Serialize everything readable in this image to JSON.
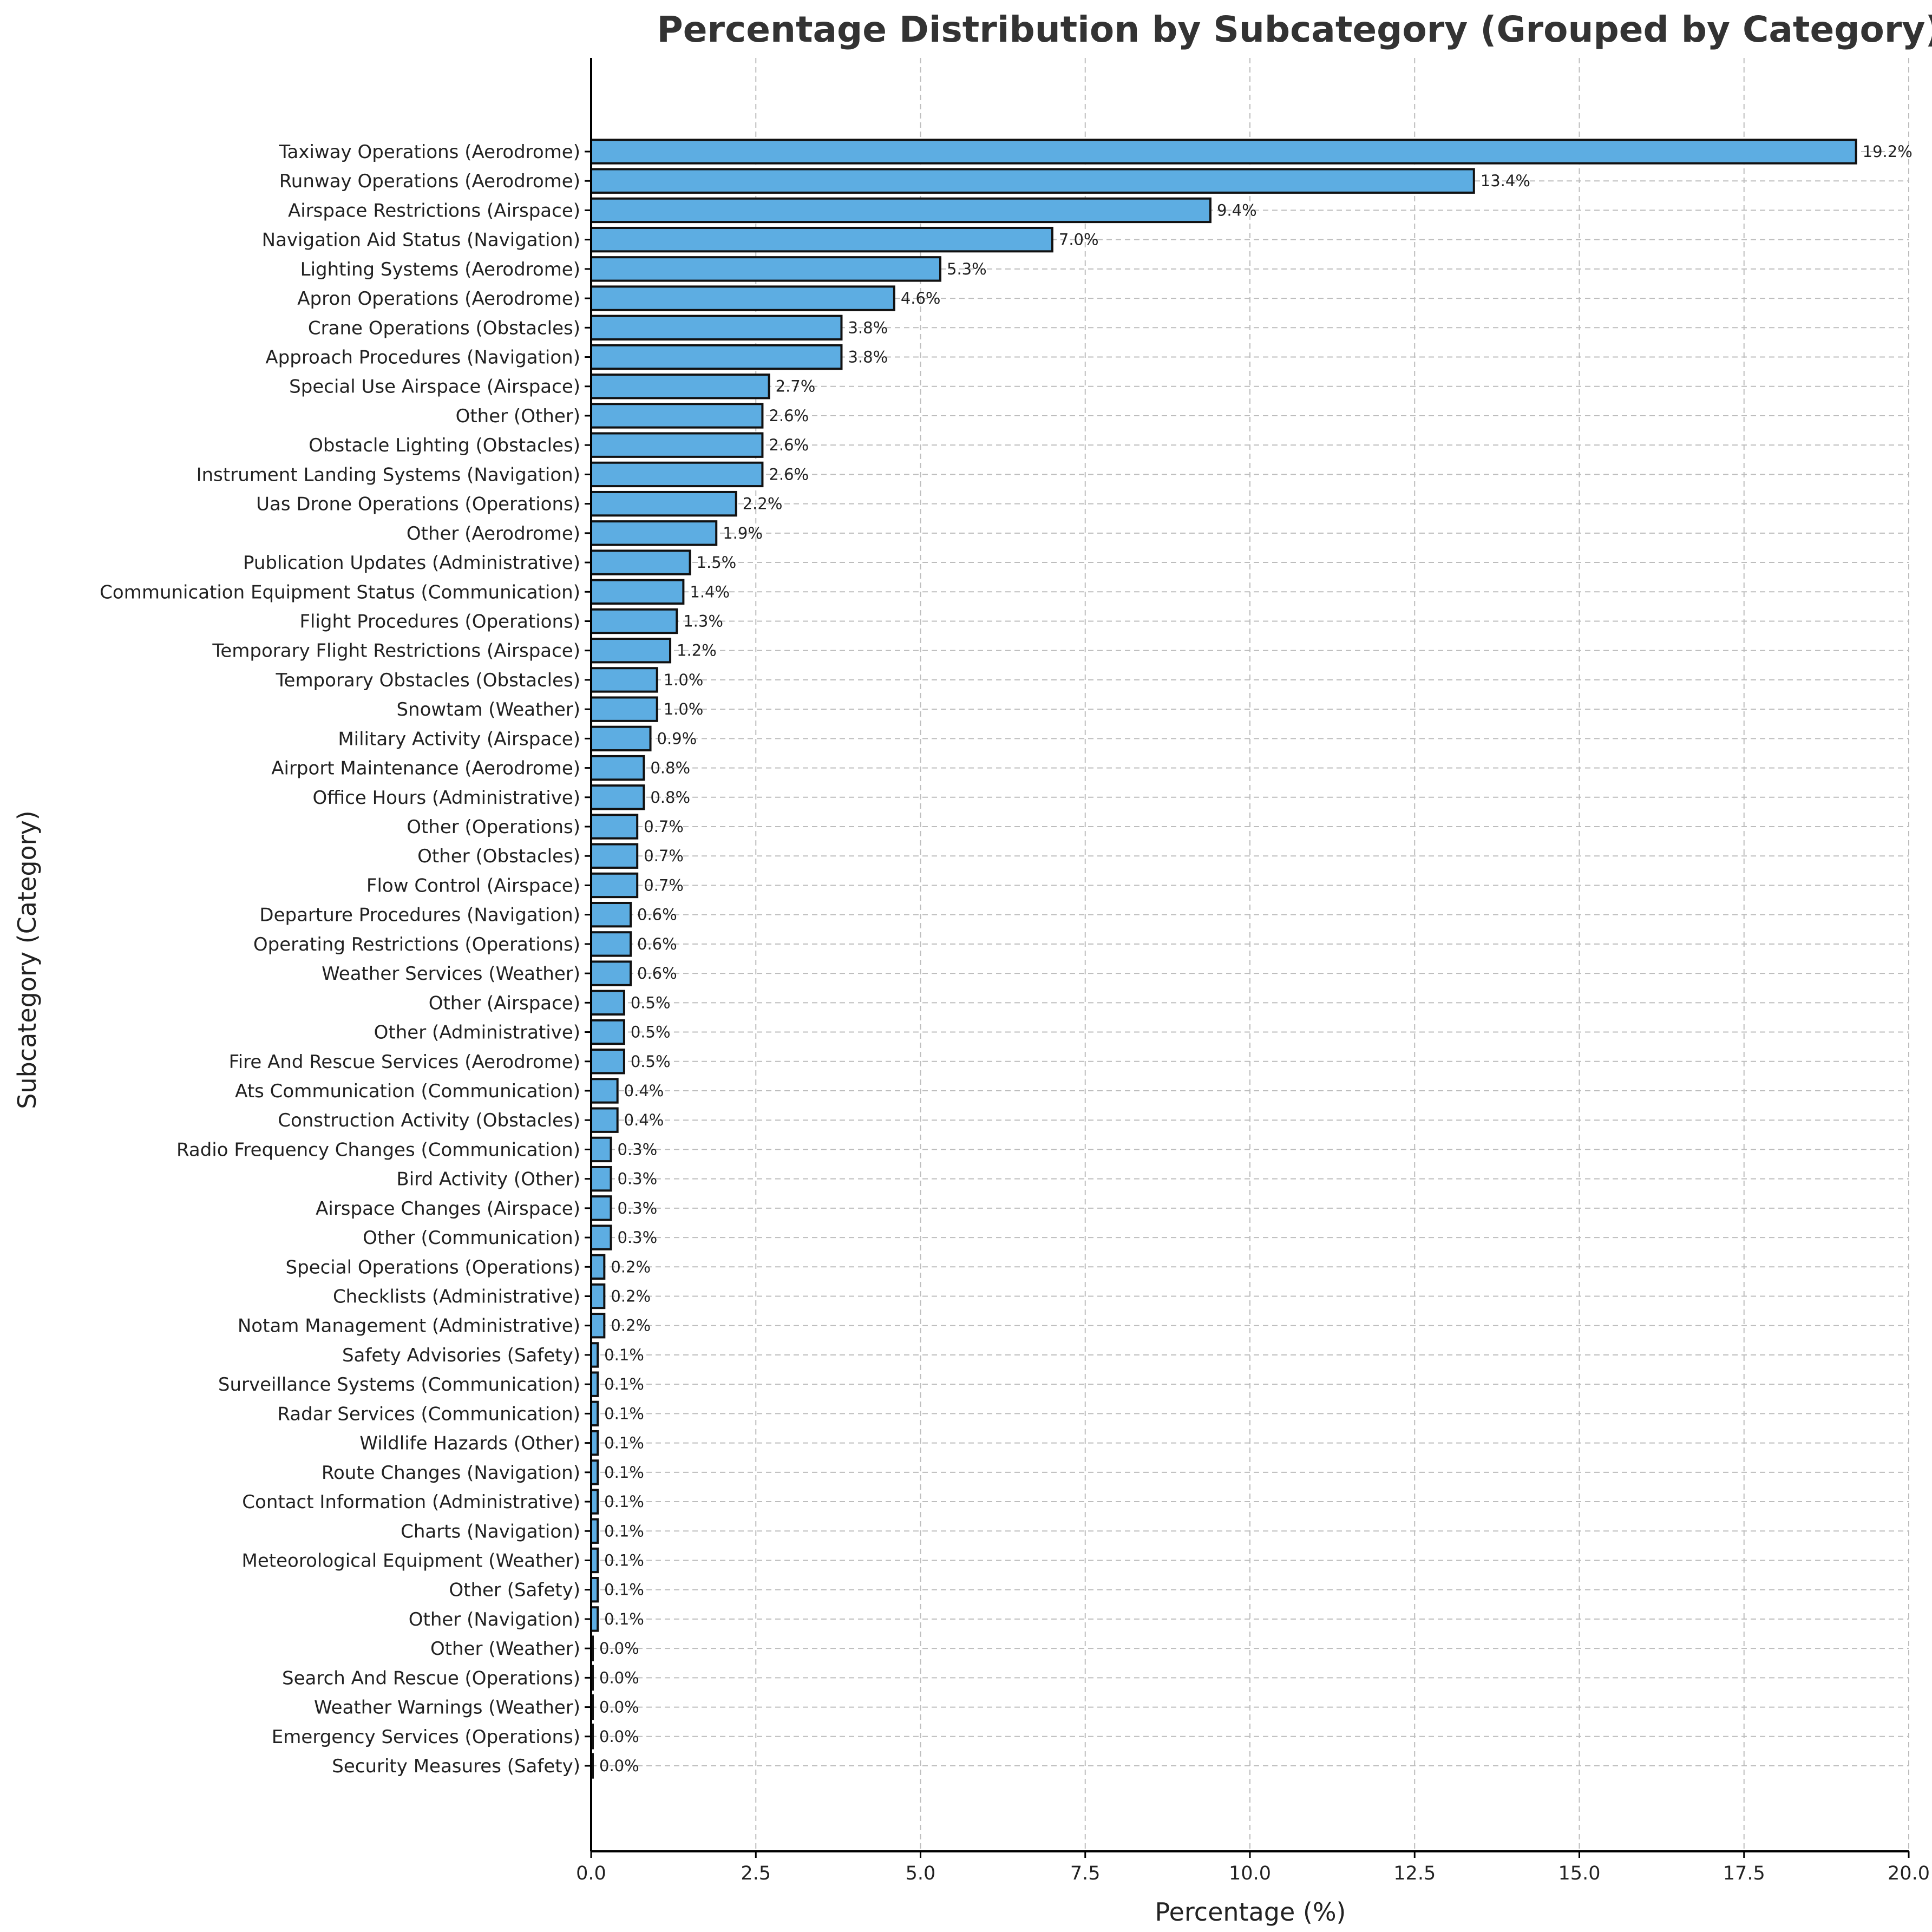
{
  "colors": {
    "bar_fill": "#5dade2",
    "bar_edge": "#111111",
    "grid": "#bdbdbd"
  },
  "chart_data": {
    "type": "bar",
    "orientation": "horizontal",
    "title": "Percentage Distribution by Subcategory (Grouped by Category)",
    "xlabel": "Percentage (%)",
    "ylabel": "Subcategory (Category)",
    "xlim": [
      0,
      20
    ],
    "xticks": [
      "0.0",
      "2.5",
      "5.0",
      "7.5",
      "10.0",
      "12.5",
      "15.0",
      "17.5",
      "20.0"
    ],
    "grid": true,
    "categories": [
      "Taxiway Operations (Aerodrome)",
      "Runway Operations (Aerodrome)",
      "Airspace Restrictions (Airspace)",
      "Navigation Aid Status (Navigation)",
      "Lighting Systems (Aerodrome)",
      "Apron Operations (Aerodrome)",
      "Crane Operations (Obstacles)",
      "Approach Procedures (Navigation)",
      "Special Use Airspace (Airspace)",
      "Other (Other)",
      "Obstacle Lighting (Obstacles)",
      "Instrument Landing Systems (Navigation)",
      "Uas Drone Operations (Operations)",
      "Other (Aerodrome)",
      "Publication Updates (Administrative)",
      "Communication Equipment Status (Communication)",
      "Flight Procedures (Operations)",
      "Temporary Flight Restrictions (Airspace)",
      "Temporary Obstacles (Obstacles)",
      "Snowtam (Weather)",
      "Military Activity (Airspace)",
      "Airport Maintenance (Aerodrome)",
      "Office Hours (Administrative)",
      "Other (Operations)",
      "Other (Obstacles)",
      "Flow Control (Airspace)",
      "Departure Procedures (Navigation)",
      "Operating Restrictions (Operations)",
      "Weather Services (Weather)",
      "Other (Airspace)",
      "Other (Administrative)",
      "Fire And Rescue Services (Aerodrome)",
      "Ats Communication (Communication)",
      "Construction Activity (Obstacles)",
      "Radio Frequency Changes (Communication)",
      "Bird Activity (Other)",
      "Airspace Changes (Airspace)",
      "Other (Communication)",
      "Special Operations (Operations)",
      "Checklists (Administrative)",
      "Notam Management (Administrative)",
      "Safety Advisories (Safety)",
      "Surveillance Systems (Communication)",
      "Radar Services (Communication)",
      "Wildlife Hazards (Other)",
      "Route Changes (Navigation)",
      "Contact Information (Administrative)",
      "Charts (Navigation)",
      "Meteorological Equipment (Weather)",
      "Other (Safety)",
      "Other (Navigation)",
      "Other (Weather)",
      "Search And Rescue (Operations)",
      "Weather Warnings (Weather)",
      "Emergency Services (Operations)",
      "Security Measures (Safety)"
    ],
    "values": [
      19.2,
      13.4,
      9.4,
      7.0,
      5.3,
      4.6,
      3.8,
      3.8,
      2.7,
      2.6,
      2.6,
      2.6,
      2.2,
      1.9,
      1.5,
      1.4,
      1.3,
      1.2,
      1.0,
      1.0,
      0.9,
      0.8,
      0.8,
      0.7,
      0.7,
      0.7,
      0.6,
      0.6,
      0.6,
      0.5,
      0.5,
      0.5,
      0.4,
      0.4,
      0.3,
      0.3,
      0.3,
      0.3,
      0.2,
      0.2,
      0.2,
      0.1,
      0.1,
      0.1,
      0.1,
      0.1,
      0.1,
      0.1,
      0.1,
      0.1,
      0.1,
      0.0,
      0.0,
      0.0,
      0.0,
      0.0
    ],
    "value_labels": [
      "19.2%",
      "13.4%",
      "9.4%",
      "7.0%",
      "5.3%",
      "4.6%",
      "3.8%",
      "3.8%",
      "2.7%",
      "2.6%",
      "2.6%",
      "2.6%",
      "2.2%",
      "1.9%",
      "1.5%",
      "1.4%",
      "1.3%",
      "1.2%",
      "1.0%",
      "1.0%",
      "0.9%",
      "0.8%",
      "0.8%",
      "0.7%",
      "0.7%",
      "0.7%",
      "0.6%",
      "0.6%",
      "0.6%",
      "0.5%",
      "0.5%",
      "0.5%",
      "0.4%",
      "0.4%",
      "0.3%",
      "0.3%",
      "0.3%",
      "0.3%",
      "0.2%",
      "0.2%",
      "0.2%",
      "0.1%",
      "0.1%",
      "0.1%",
      "0.1%",
      "0.1%",
      "0.1%",
      "0.1%",
      "0.1%",
      "0.1%",
      "0.1%",
      "0.0%",
      "0.0%",
      "0.0%",
      "0.0%",
      "0.0%"
    ]
  }
}
